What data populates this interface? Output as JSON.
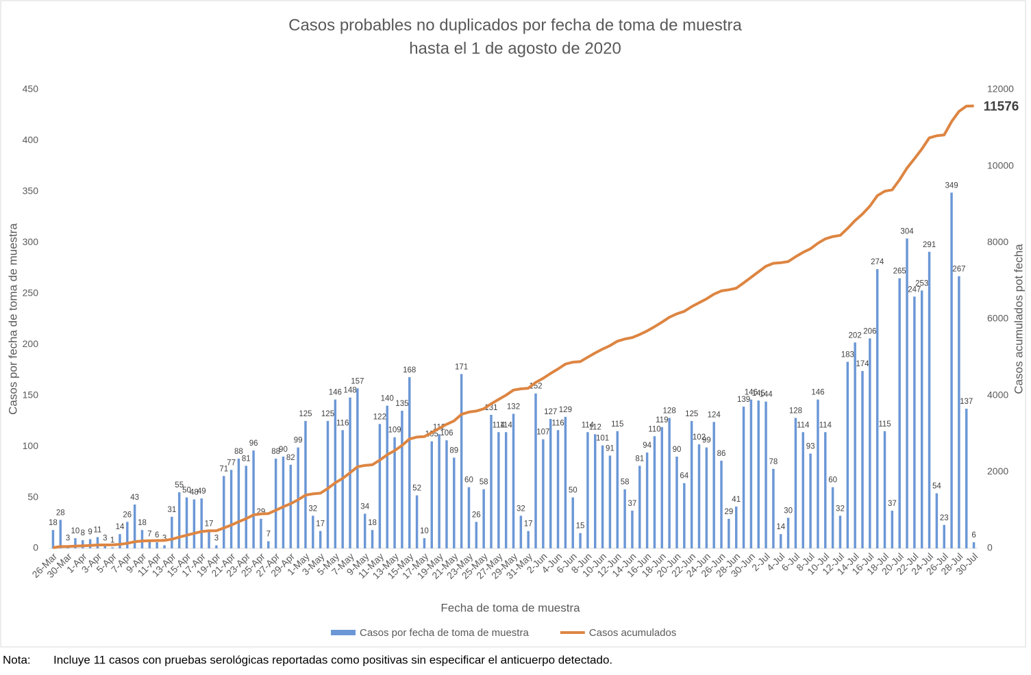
{
  "chart_data": {
    "type": "bar",
    "title": "Casos probables no duplicados por fecha de toma de muestra",
    "subtitle": "hasta el 1 de agosto de 2020",
    "x_label": "Fecha de toma de muestra",
    "y_label": "Casos por fecha de toma de muestra",
    "y2_label": "Casos acumulados pot fecha",
    "categories": [
      "26-Mar",
      null,
      "30-Mar",
      null,
      "1-Apr",
      null,
      "3-Apr",
      null,
      "5-Apr",
      null,
      "7-Apr",
      null,
      "9-Apr",
      null,
      "11-Apr",
      null,
      "13-Apr",
      null,
      "15-Apr",
      null,
      "17-Apr",
      null,
      "19-Apr",
      null,
      "21-Apr",
      null,
      "23-Apr",
      null,
      "25-Apr",
      null,
      "27-Apr",
      null,
      "29-Apr",
      null,
      "1-May",
      null,
      "3-May",
      null,
      "5-May",
      null,
      "7-May",
      null,
      "9-May",
      null,
      "11-May",
      null,
      "13-May",
      null,
      "15-May",
      null,
      "17-May",
      null,
      "19-May",
      null,
      "21-May",
      null,
      "23-May",
      null,
      "25-May",
      null,
      "27-May",
      null,
      "29-May",
      null,
      "31-May",
      null,
      "2-Jun",
      null,
      "4-Jun",
      null,
      "6-Jun",
      null,
      "8-Jun",
      null,
      "10-Jun",
      null,
      "12-Jun",
      null,
      "14-Jun",
      null,
      "16-Jun",
      null,
      "18-Jun",
      null,
      "20-Jun",
      null,
      "22-Jun",
      null,
      "24-Jun",
      null,
      "26-Jun",
      null,
      "28-Jun",
      null,
      "30-Jun",
      null,
      "2-Jul",
      null,
      "4-Jul",
      null,
      "6-Jul",
      null,
      "8-Jul",
      null,
      "10-Jul",
      null,
      "12-Jul",
      null,
      "14-Jul",
      null,
      "16-Jul",
      null,
      "18-Jul",
      null,
      "20-Jul",
      null,
      "22-Jul",
      null,
      "24-Jul",
      null,
      "26-Jul",
      null,
      "28-Jul",
      null,
      "30-Jul"
    ],
    "series": [
      {
        "name": "Casos por fecha de toma de muestra",
        "type": "bar",
        "color": "#6b97d6",
        "values": [
          18,
          28,
          3,
          10,
          8,
          9,
          11,
          3,
          1,
          14,
          26,
          43,
          18,
          7,
          6,
          3,
          31,
          55,
          50,
          48,
          49,
          17,
          3,
          71,
          77,
          88,
          81,
          96,
          29,
          7,
          88,
          90,
          82,
          99,
          125,
          32,
          17,
          125,
          146,
          116,
          148,
          157,
          34,
          18,
          122,
          140,
          109,
          135,
          168,
          52,
          10,
          105,
          112,
          106,
          89,
          171,
          60,
          26,
          58,
          131,
          114,
          114,
          132,
          32,
          17,
          152,
          107,
          127,
          116,
          129,
          50,
          15,
          114,
          112,
          101,
          91,
          115,
          58,
          37,
          81,
          94,
          110,
          119,
          128,
          90,
          64,
          125,
          102,
          99,
          124,
          86,
          29,
          41,
          139,
          146,
          145,
          144,
          78,
          14,
          30,
          128,
          114,
          93,
          146,
          114,
          60,
          32,
          183,
          202,
          174,
          206,
          274,
          115,
          37,
          265,
          304,
          247,
          253,
          291,
          54,
          23,
          349,
          267,
          137,
          6
        ]
      },
      {
        "name": "Casos acumulados",
        "type": "line",
        "axis": "y2",
        "color": "#dd8542",
        "values": [
          18,
          46,
          49,
          59,
          67,
          76,
          87,
          90,
          91,
          105,
          131,
          174,
          192,
          199,
          205,
          208,
          239,
          294,
          344,
          392,
          441,
          458,
          461,
          532,
          609,
          697,
          778,
          874,
          903,
          910,
          998,
          1088,
          1170,
          1269,
          1394,
          1426,
          1443,
          1568,
          1714,
          1830,
          1978,
          2135,
          2169,
          2187,
          2309,
          2449,
          2558,
          2693,
          2861,
          2913,
          2923,
          3028,
          3140,
          3246,
          3335,
          3506,
          3566,
          3592,
          3650,
          3781,
          3895,
          4009,
          4141,
          4173,
          4190,
          4342,
          4449,
          4576,
          4692,
          4821,
          4871,
          4886,
          5000,
          5112,
          5213,
          5304,
          5419,
          5477,
          5514,
          5595,
          5689,
          5799,
          5918,
          6046,
          6136,
          6200,
          6325,
          6427,
          6526,
          6650,
          6736,
          6765,
          6806,
          6945,
          7091,
          7236,
          7380,
          7458,
          7472,
          7502,
          7630,
          7744,
          7837,
          7983,
          8097,
          8157,
          8189,
          8372,
          8574,
          8748,
          8954,
          9228,
          9343,
          9380,
          9645,
          9949,
          10196,
          10449,
          10740,
          10794,
          10817,
          11166,
          11433,
          11570,
          11576
        ]
      }
    ],
    "ylim": [
      0,
      450
    ],
    "yticks": [
      0,
      50,
      100,
      150,
      200,
      250,
      300,
      350,
      400,
      450
    ],
    "y2lim": [
      0,
      12000
    ],
    "y2ticks": [
      0,
      2000,
      4000,
      6000,
      8000,
      10000,
      12000
    ],
    "grid": false,
    "legend": "bottom"
  },
  "note_label": "Nota:",
  "note_text": "Incluye 11 casos con pruebas serológicas reportadas como positivas sin especificar el anticuerpo detectado."
}
